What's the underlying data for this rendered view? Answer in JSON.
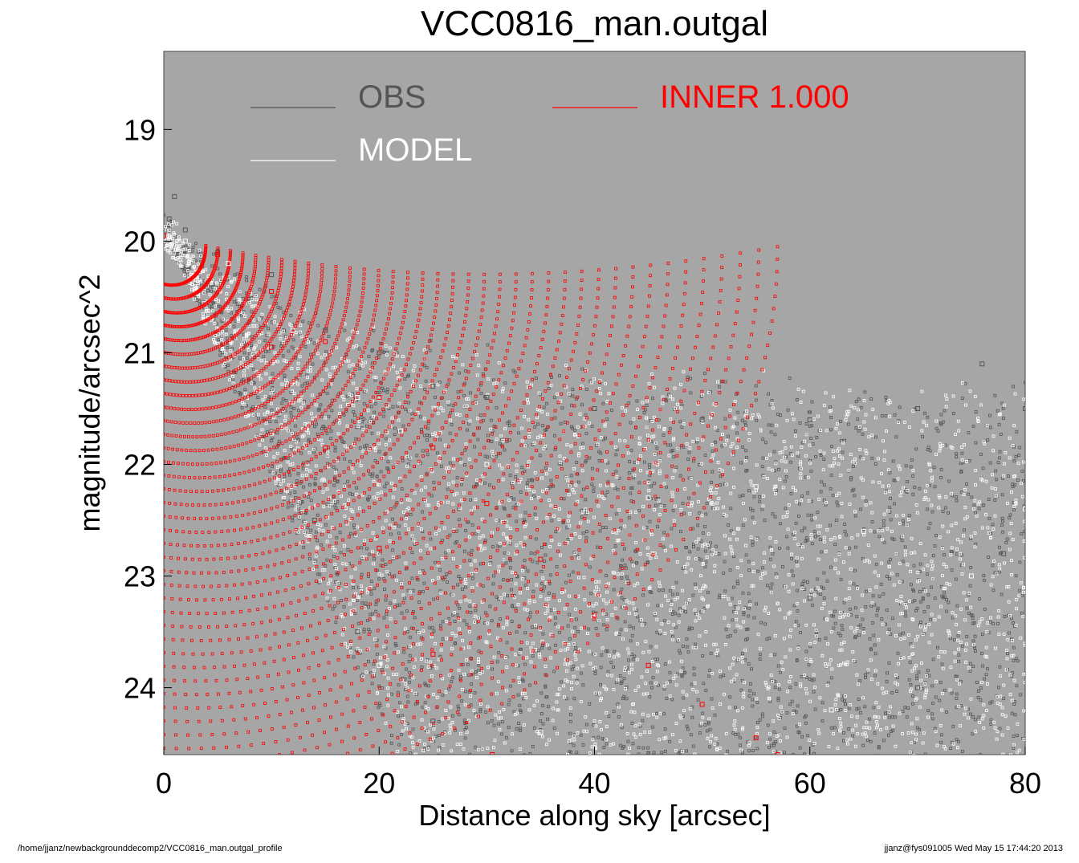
{
  "chart_data": {
    "type": "scatter",
    "title": "VCC0816_man.outgal",
    "xlabel": "Distance along sky [arcsec]",
    "ylabel": "magnitude/arcsec^2",
    "xlim": [
      0,
      80
    ],
    "ylim": [
      24.6,
      18.3
    ],
    "y_inverted": true,
    "xticks": [
      "0",
      "20",
      "40",
      "60",
      "80"
    ],
    "yticks": [
      "19",
      "20",
      "21",
      "22",
      "23",
      "24"
    ],
    "background": "#a6a6a6",
    "grid": false,
    "legend_placement": "top-left",
    "legend": [
      {
        "label": "OBS",
        "color": "#555555"
      },
      {
        "label": "MODEL",
        "color": "#ffffff"
      },
      {
        "label": "INNER  1.000",
        "color": "#ff0000"
      }
    ],
    "series": [
      {
        "name": "OBS",
        "color": "#555555",
        "marker": "open-square",
        "points": [
          [
            0.5,
            19.8
          ],
          [
            1,
            19.6
          ],
          [
            2,
            19.9
          ],
          [
            5,
            20.1
          ],
          [
            10,
            20.3
          ],
          [
            15,
            20.8
          ],
          [
            20,
            21.0
          ],
          [
            25,
            21.3
          ],
          [
            30,
            21.4
          ],
          [
            40,
            21.5
          ],
          [
            50,
            21.6
          ],
          [
            60,
            21.6
          ],
          [
            70,
            21.5
          ],
          [
            76,
            21.1
          ],
          [
            80,
            21.5
          ],
          [
            14,
            22.5
          ],
          [
            18,
            23.5
          ],
          [
            25,
            24.3
          ],
          [
            60,
            23.2
          ],
          [
            70,
            24.0
          ],
          [
            78,
            22.8
          ]
        ]
      },
      {
        "name": "MODEL",
        "color": "#ffffff",
        "marker": "open-square",
        "points": [
          [
            2,
            20.0
          ],
          [
            6,
            20.2
          ],
          [
            12,
            20.8
          ],
          [
            18,
            21.4
          ],
          [
            22,
            21.7
          ],
          [
            30,
            22.0
          ],
          [
            45,
            22.3
          ],
          [
            55,
            22.2
          ],
          [
            65,
            22.6
          ],
          [
            75,
            23.0
          ],
          [
            80,
            22.4
          ],
          [
            20,
            23.8
          ],
          [
            35,
            24.4
          ],
          [
            62,
            24.2
          ]
        ]
      },
      {
        "name": "INNER  1.000",
        "color": "#ff0000",
        "marker": "open-square",
        "points": [
          [
            0,
            19.95
          ],
          [
            5,
            20.12
          ],
          [
            10,
            20.45
          ],
          [
            15,
            20.9
          ],
          [
            20,
            21.4
          ],
          [
            25,
            21.85
          ],
          [
            30,
            22.35
          ],
          [
            35,
            22.85
          ],
          [
            40,
            23.35
          ],
          [
            45,
            23.8
          ],
          [
            50,
            24.15
          ],
          [
            55,
            24.45
          ],
          [
            57,
            24.6
          ],
          [
            10,
            20.95
          ],
          [
            15,
            21.85
          ],
          [
            20,
            22.75
          ],
          [
            25,
            23.7
          ],
          [
            30.5,
            24.6
          ]
        ]
      }
    ]
  },
  "footer": {
    "path": "/home/jjanz/newbackgrounddecomp2/VCC0816_man.outgal_profile",
    "user_timestamp": "jjanz@fys091005  Wed May 15 17:44:20 2013"
  }
}
